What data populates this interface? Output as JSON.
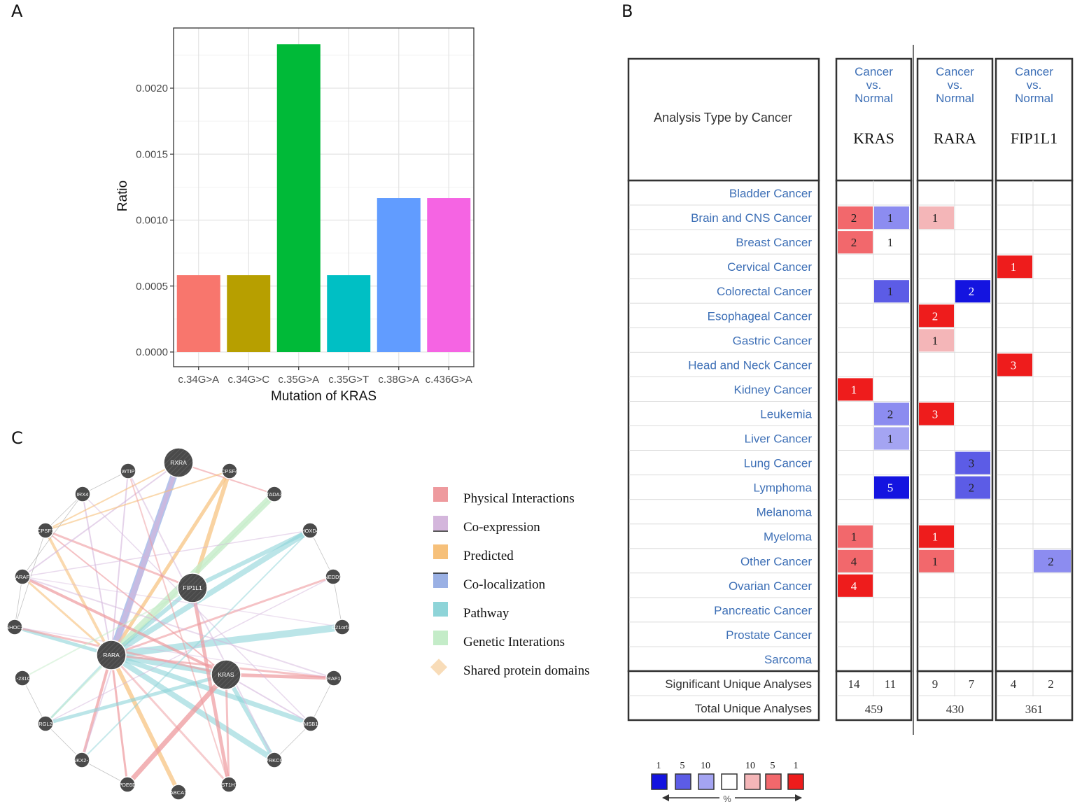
{
  "panel_labels": {
    "a": "A",
    "b": "B",
    "c": "C"
  },
  "chart_data": [
    {
      "type": "bar",
      "panel": "A",
      "title": "",
      "xlabel": "Mutation of KRAS",
      "ylabel": "Ratio",
      "categories": [
        "c.34G>A",
        "c.34G>C",
        "c.35G>A",
        "c.35G>T",
        "c.38G>A",
        "c.436G>A"
      ],
      "values": [
        0.000583,
        0.000583,
        0.002333,
        0.000583,
        0.001167,
        0.001167
      ],
      "colors": [
        "#F8766D",
        "#B79F00",
        "#00BA38",
        "#00BFC4",
        "#619CFF",
        "#F564E3"
      ],
      "ylim": [
        0,
        0.00245
      ],
      "yticks": [
        0,
        0.0005,
        0.001,
        0.0015,
        0.002
      ],
      "ytick_labels": [
        "0.0000",
        "0.0005",
        "0.0010",
        "0.0015",
        "0.0020"
      ],
      "grid": true
    },
    {
      "type": "table",
      "panel": "B",
      "corner_header": "Analysis Type by Cancer",
      "comparison_label": [
        "Cancer",
        "vs.",
        "Normal"
      ],
      "genes": [
        "KRAS",
        "RARA",
        "FIP1L1"
      ],
      "rows": [
        {
          "name": "Bladder Cancer",
          "cells": [
            [
              null,
              null
            ],
            [
              null,
              null
            ],
            [
              null,
              null
            ]
          ]
        },
        {
          "name": "Brain and CNS Cancer",
          "cells": [
            [
              2,
              1
            ],
            [
              1,
              null
            ],
            [
              null,
              null
            ]
          ]
        },
        {
          "name": "Breast Cancer",
          "cells": [
            [
              2,
              1
            ],
            [
              null,
              null
            ],
            [
              null,
              null
            ]
          ]
        },
        {
          "name": "Cervical Cancer",
          "cells": [
            [
              null,
              null
            ],
            [
              null,
              null
            ],
            [
              1,
              null
            ]
          ]
        },
        {
          "name": "Colorectal Cancer",
          "cells": [
            [
              null,
              1
            ],
            [
              null,
              2
            ],
            [
              null,
              null
            ]
          ]
        },
        {
          "name": "Esophageal Cancer",
          "cells": [
            [
              null,
              null
            ],
            [
              2,
              null
            ],
            [
              null,
              null
            ]
          ]
        },
        {
          "name": "Gastric Cancer",
          "cells": [
            [
              null,
              null
            ],
            [
              1,
              null
            ],
            [
              null,
              null
            ]
          ]
        },
        {
          "name": "Head and Neck Cancer",
          "cells": [
            [
              null,
              null
            ],
            [
              null,
              null
            ],
            [
              3,
              null
            ]
          ]
        },
        {
          "name": "Kidney Cancer",
          "cells": [
            [
              1,
              null
            ],
            [
              null,
              null
            ],
            [
              null,
              null
            ]
          ]
        },
        {
          "name": "Leukemia",
          "cells": [
            [
              null,
              2
            ],
            [
              3,
              null
            ],
            [
              null,
              null
            ]
          ]
        },
        {
          "name": "Liver Cancer",
          "cells": [
            [
              null,
              1
            ],
            [
              null,
              null
            ],
            [
              null,
              null
            ]
          ]
        },
        {
          "name": "Lung Cancer",
          "cells": [
            [
              null,
              null
            ],
            [
              null,
              3
            ],
            [
              null,
              null
            ]
          ]
        },
        {
          "name": "Lymphoma",
          "cells": [
            [
              null,
              5
            ],
            [
              null,
              2
            ],
            [
              null,
              null
            ]
          ]
        },
        {
          "name": "Melanoma",
          "cells": [
            [
              null,
              null
            ],
            [
              null,
              null
            ],
            [
              null,
              null
            ]
          ]
        },
        {
          "name": "Myeloma",
          "cells": [
            [
              1,
              null
            ],
            [
              1,
              null
            ],
            [
              null,
              null
            ]
          ]
        },
        {
          "name": "Other Cancer",
          "cells": [
            [
              4,
              null
            ],
            [
              1,
              null
            ],
            [
              null,
              2
            ]
          ]
        },
        {
          "name": "Ovarian Cancer",
          "cells": [
            [
              4,
              null
            ],
            [
              null,
              null
            ],
            [
              null,
              null
            ]
          ]
        },
        {
          "name": "Pancreatic Cancer",
          "cells": [
            [
              null,
              null
            ],
            [
              null,
              null
            ],
            [
              null,
              null
            ]
          ]
        },
        {
          "name": "Prostate Cancer",
          "cells": [
            [
              null,
              null
            ],
            [
              null,
              null
            ],
            [
              null,
              null
            ]
          ]
        },
        {
          "name": "Sarcoma",
          "cells": [
            [
              null,
              null
            ],
            [
              null,
              null
            ],
            [
              null,
              null
            ]
          ]
        }
      ],
      "cell_shades": {
        "1": [
          [
            "#f2686c",
            "#8c8cf0"
          ],
          [
            "#f4b6b8",
            null
          ],
          [
            null,
            null
          ]
        ],
        "2": [
          [
            "#f2686c",
            null
          ],
          [
            null,
            null
          ],
          [
            null,
            null
          ]
        ],
        "3": [
          [
            null,
            null
          ],
          [
            null,
            null
          ],
          [
            "#ee1c1c",
            null
          ]
        ],
        "4": [
          [
            null,
            "#5c5ce6"
          ],
          [
            null,
            "#1414e0"
          ],
          [
            null,
            null
          ]
        ],
        "5": [
          [
            null,
            null
          ],
          [
            "#ee1c1c",
            null
          ],
          [
            null,
            null
          ]
        ],
        "6": [
          [
            null,
            null
          ],
          [
            "#f4b6b8",
            null
          ],
          [
            null,
            null
          ]
        ],
        "7": [
          [
            null,
            null
          ],
          [
            null,
            null
          ],
          [
            "#ee1c1c",
            null
          ]
        ],
        "8": [
          [
            "#ee1c1c",
            null
          ],
          [
            null,
            null
          ],
          [
            null,
            null
          ]
        ],
        "9": [
          [
            null,
            "#8c8cf0"
          ],
          [
            "#ee1c1c",
            null
          ],
          [
            null,
            null
          ]
        ],
        "10": [
          [
            null,
            "#a4a4f2"
          ],
          [
            null,
            null
          ],
          [
            null,
            null
          ]
        ],
        "11": [
          [
            null,
            null
          ],
          [
            null,
            "#5c5ce6"
          ],
          [
            null,
            null
          ]
        ],
        "12": [
          [
            null,
            "#1414e0"
          ],
          [
            null,
            "#5c5ce6"
          ],
          [
            null,
            null
          ]
        ],
        "14": [
          [
            "#f2686c",
            null
          ],
          [
            "#ee1c1c",
            null
          ],
          [
            null,
            null
          ]
        ],
        "15": [
          [
            "#f2686c",
            null
          ],
          [
            "#f2686c",
            null
          ],
          [
            null,
            "#8c8cf0"
          ]
        ],
        "16": [
          [
            "#ee1c1c",
            null
          ],
          [
            null,
            null
          ],
          [
            null,
            null
          ]
        ]
      },
      "significant_label": "Significant Unique Analyses",
      "significant": [
        [
          14,
          11
        ],
        [
          9,
          7
        ],
        [
          4,
          2
        ]
      ],
      "total_label": "Total Unique Analyses",
      "total": [
        459,
        430,
        361
      ],
      "legend": {
        "labels": [
          "1",
          "5",
          "10",
          "10",
          "5",
          "1"
        ],
        "colors": [
          "#1414e0",
          "#5c5ce6",
          "#a4a4f2",
          "#ffffff",
          "#f4b6b8",
          "#f2686c",
          "#ee1c1c"
        ],
        "unit": "%"
      }
    }
  ],
  "network": {
    "nodes": [
      {
        "id": "RXRA",
        "big": true
      },
      {
        "id": "CPSF4",
        "big": false
      },
      {
        "id": "WTIP",
        "big": false
      },
      {
        "id": "TADA3",
        "big": false
      },
      {
        "id": "IRX4",
        "big": false
      },
      {
        "id": "HOXD4",
        "big": false
      },
      {
        "id": "CPSF1",
        "big": false
      },
      {
        "id": "NEDD9",
        "big": false
      },
      {
        "id": "ARAF",
        "big": false
      },
      {
        "id": "FIP1L1",
        "big": true
      },
      {
        "id": "C21orf33",
        "big": false
      },
      {
        "id": "SHOC2",
        "big": false
      },
      {
        "id": "RARA",
        "big": true
      },
      {
        "id": "KRAS",
        "big": true
      },
      {
        "id": "RAF1",
        "big": false
      },
      {
        "id": "RP11-231C18.3",
        "big": false
      },
      {
        "id": "RGL2",
        "big": false
      },
      {
        "id": "TMSB10",
        "big": false
      },
      {
        "id": "NKX2-1",
        "big": false
      },
      {
        "id": "PRKCG",
        "big": false
      },
      {
        "id": "PDE6D",
        "big": false
      },
      {
        "id": "ABCA1",
        "big": false
      },
      {
        "id": "HIST1H1C",
        "big": false
      }
    ],
    "legend": [
      {
        "label": "Physical Interactions",
        "color": "#ee9a9e"
      },
      {
        "label": "Co-expression",
        "color": "#d4b6dc"
      },
      {
        "label": "Predicted",
        "color": "#f6c07a"
      },
      {
        "label": "Co-localization",
        "color": "#9ab0e4"
      },
      {
        "label": "Pathway",
        "color": "#8ed4d8"
      },
      {
        "label": "Genetic Interations",
        "color": "#c4ecc8"
      },
      {
        "label": "Shared protein domains",
        "color": "#f8dcb8"
      }
    ]
  }
}
